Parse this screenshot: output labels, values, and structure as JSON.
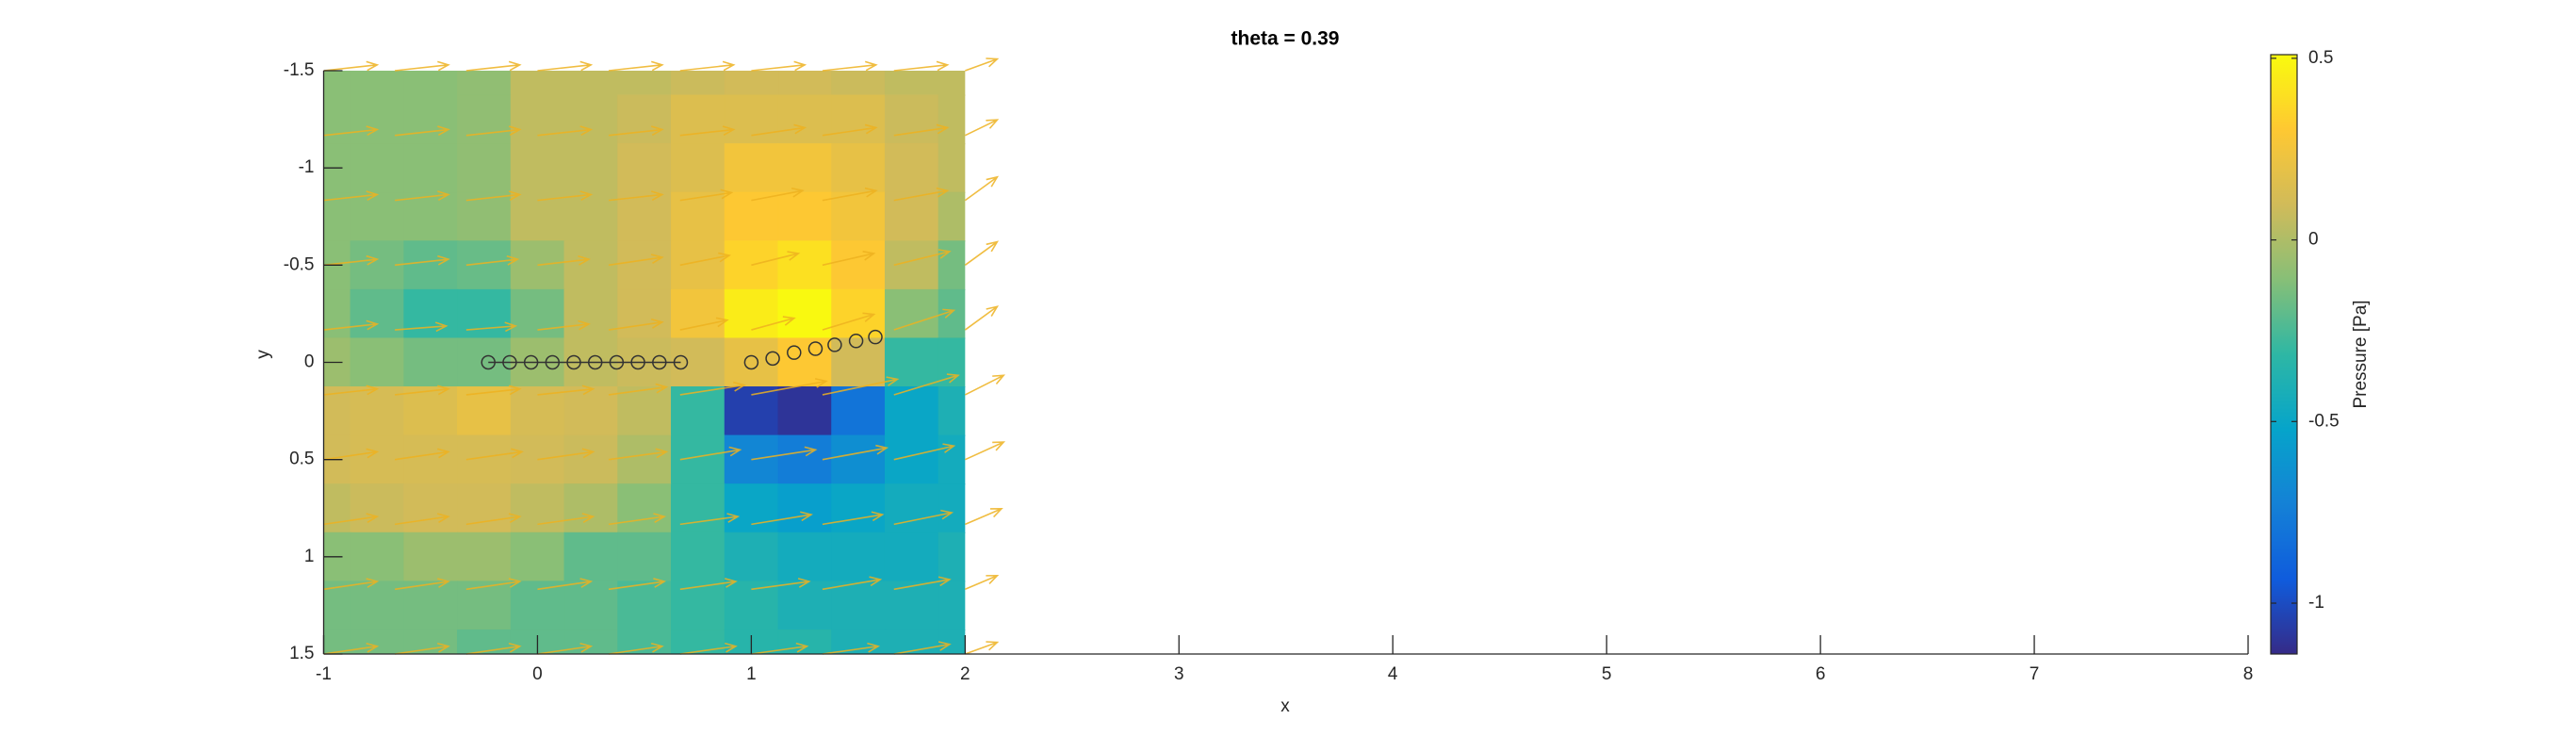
{
  "chart_data": {
    "type": "contour",
    "title": "theta = 0.39",
    "x_label": "x",
    "y_label": "y",
    "xlim": [
      -1,
      8
    ],
    "ylim": [
      -1.5,
      1.5
    ],
    "y_reverse": true,
    "xticks": [
      -1,
      0,
      1,
      2,
      3,
      4,
      5,
      6,
      7,
      8
    ],
    "yticks": [
      -1.5,
      -1,
      -0.5,
      0,
      0.5,
      1,
      1.5
    ],
    "field": {
      "x": [
        -1,
        -0.75,
        -0.5,
        -0.25,
        0,
        0.25,
        0.5,
        0.75,
        1,
        1.25,
        1.5,
        1.75,
        2
      ],
      "y": [
        -1.5,
        -1.25,
        -1,
        -0.75,
        -0.5,
        -0.25,
        0,
        0.25,
        0.5,
        0.75,
        1,
        1.25,
        1.5
      ],
      "values": [
        [
          -0.1,
          -0.1,
          -0.1,
          -0.08,
          0.05,
          0.05,
          0.05,
          0.08,
          0.1,
          0.1,
          0.08,
          0.05,
          0.05
        ],
        [
          -0.1,
          -0.1,
          -0.1,
          -0.08,
          0.05,
          0.05,
          0.08,
          0.15,
          0.15,
          0.15,
          0.15,
          0.08,
          0.05
        ],
        [
          -0.1,
          -0.1,
          -0.1,
          -0.08,
          0.05,
          0.05,
          0.1,
          0.15,
          0.25,
          0.25,
          0.2,
          0.1,
          0.05
        ],
        [
          -0.1,
          -0.1,
          -0.1,
          -0.08,
          0.05,
          0.05,
          0.1,
          0.2,
          0.3,
          0.3,
          0.25,
          0.1,
          0
        ],
        [
          -0.1,
          -0.15,
          -0.2,
          -0.18,
          -0.05,
          0.05,
          0.1,
          0.2,
          0.35,
          0.4,
          0.3,
          0.05,
          -0.15
        ],
        [
          -0.1,
          -0.2,
          -0.3,
          -0.3,
          -0.15,
          0.05,
          0.1,
          0.25,
          0.45,
          0.5,
          0.35,
          -0.1,
          -0.2
        ],
        [
          -0.05,
          -0.1,
          -0.15,
          -0.15,
          -0.05,
          0.05,
          0.08,
          0.1,
          0.2,
          0.3,
          0.1,
          -0.3,
          -0.3
        ],
        [
          0.1,
          0.12,
          0.15,
          0.2,
          0.12,
          0.1,
          0.05,
          -0.3,
          -1.05,
          -1.1,
          -0.8,
          -0.5,
          -0.4
        ],
        [
          0.1,
          0.12,
          0.12,
          0.12,
          0.1,
          0.08,
          0,
          -0.3,
          -0.7,
          -0.75,
          -0.65,
          -0.5,
          -0.45
        ],
        [
          0.05,
          0.08,
          0.1,
          0.1,
          0.05,
          0,
          -0.1,
          -0.3,
          -0.5,
          -0.55,
          -0.5,
          -0.45,
          -0.45
        ],
        [
          -0.1,
          -0.1,
          -0.05,
          -0.05,
          -0.1,
          -0.2,
          -0.2,
          -0.3,
          -0.4,
          -0.45,
          -0.45,
          -0.45,
          -0.4
        ],
        [
          -0.15,
          -0.15,
          -0.15,
          -0.15,
          -0.2,
          -0.2,
          -0.25,
          -0.3,
          -0.35,
          -0.4,
          -0.4,
          -0.4,
          -0.4
        ],
        [
          -0.15,
          -0.15,
          -0.15,
          -0.2,
          -0.2,
          -0.2,
          -0.25,
          -0.3,
          -0.35,
          -0.35,
          -0.4,
          -0.4,
          -0.4
        ]
      ]
    },
    "colorbar": {
      "label": "Pressure [Pa]",
      "clim": [
        -1.14,
        0.51
      ],
      "ticks": [
        -1,
        -0.5,
        0,
        0.5
      ],
      "colormap": "parula"
    },
    "quiver": {
      "color": "#edb120",
      "x": [
        -1,
        -0.667,
        -0.333,
        0,
        0.333,
        0.667,
        1,
        1.333,
        1.667,
        2
      ],
      "y": [
        -1.5,
        -1.167,
        -0.833,
        -0.5,
        -0.167,
        0.167,
        0.5,
        0.833,
        1.167,
        1.5
      ],
      "u": [
        [
          0.25,
          0.25,
          0.25,
          0.25,
          0.25,
          0.25,
          0.25,
          0.25,
          0.25,
          0.15
        ],
        [
          0.25,
          0.25,
          0.25,
          0.25,
          0.25,
          0.25,
          0.25,
          0.25,
          0.25,
          0.15
        ],
        [
          0.25,
          0.25,
          0.25,
          0.25,
          0.25,
          0.24,
          0.24,
          0.25,
          0.25,
          0.15
        ],
        [
          0.25,
          0.25,
          0.24,
          0.24,
          0.25,
          0.23,
          0.22,
          0.24,
          0.26,
          0.15
        ],
        [
          0.25,
          0.24,
          0.23,
          0.24,
          0.25,
          0.22,
          0.2,
          0.24,
          0.28,
          0.15
        ],
        [
          0.25,
          0.25,
          0.25,
          0.26,
          0.27,
          0.3,
          0.35,
          0.35,
          0.3,
          0.18
        ],
        [
          0.25,
          0.25,
          0.26,
          0.26,
          0.27,
          0.28,
          0.3,
          0.3,
          0.28,
          0.18
        ],
        [
          0.25,
          0.25,
          0.25,
          0.26,
          0.26,
          0.27,
          0.28,
          0.28,
          0.27,
          0.17
        ],
        [
          0.25,
          0.25,
          0.25,
          0.25,
          0.26,
          0.26,
          0.27,
          0.27,
          0.26,
          0.15
        ],
        [
          0.25,
          0.25,
          0.25,
          0.25,
          0.25,
          0.26,
          0.26,
          0.26,
          0.26,
          0.15
        ]
      ],
      "v": [
        [
          -0.03,
          -0.03,
          -0.03,
          -0.03,
          -0.03,
          -0.03,
          -0.03,
          -0.03,
          -0.03,
          -0.06
        ],
        [
          -0.03,
          -0.03,
          -0.03,
          -0.03,
          -0.03,
          -0.03,
          -0.04,
          -0.04,
          -0.04,
          -0.08
        ],
        [
          -0.03,
          -0.03,
          -0.03,
          -0.03,
          -0.03,
          -0.04,
          -0.05,
          -0.05,
          -0.05,
          -0.12
        ],
        [
          -0.03,
          -0.03,
          -0.03,
          -0.03,
          -0.04,
          -0.05,
          -0.06,
          -0.06,
          -0.07,
          -0.12
        ],
        [
          -0.03,
          -0.02,
          -0.02,
          -0.03,
          -0.04,
          -0.05,
          -0.06,
          -0.08,
          -0.1,
          -0.12
        ],
        [
          -0.03,
          -0.03,
          -0.03,
          -0.03,
          -0.04,
          -0.05,
          -0.07,
          -0.08,
          -0.1,
          -0.1
        ],
        [
          -0.04,
          -0.04,
          -0.04,
          -0.04,
          -0.04,
          -0.05,
          -0.05,
          -0.06,
          -0.07,
          -0.09
        ],
        [
          -0.04,
          -0.04,
          -0.04,
          -0.04,
          -0.04,
          -0.04,
          -0.05,
          -0.05,
          -0.06,
          -0.08
        ],
        [
          -0.04,
          -0.04,
          -0.04,
          -0.04,
          -0.04,
          -0.04,
          -0.04,
          -0.05,
          -0.05,
          -0.07
        ],
        [
          -0.04,
          -0.04,
          -0.04,
          -0.04,
          -0.04,
          -0.04,
          -0.04,
          -0.04,
          -0.05,
          -0.06
        ]
      ]
    },
    "markers": [
      {
        "color": "#333333",
        "line": true,
        "x": [
          -0.23,
          -0.13,
          -0.03,
          0.07,
          0.17,
          0.27,
          0.37,
          0.47,
          0.57,
          0.67
        ],
        "y": [
          0,
          0,
          0,
          0,
          0,
          0,
          0,
          0,
          0,
          0
        ]
      },
      {
        "color": "#333333",
        "line": false,
        "x": [
          1.0,
          1.1,
          1.2,
          1.3,
          1.39,
          1.49,
          1.58
        ],
        "y": [
          0,
          -0.02,
          -0.05,
          -0.07,
          -0.09,
          -0.11,
          -0.13
        ]
      }
    ]
  }
}
